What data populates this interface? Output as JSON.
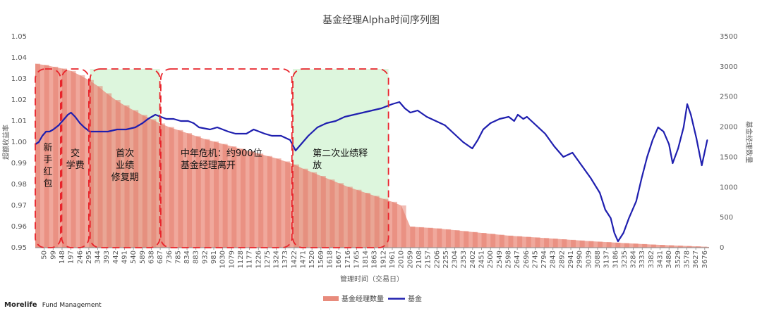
{
  "chart_data": {
    "type": "bar+line",
    "title": "基金经理Alpha时间序列图",
    "xlabel": "管理时间（交易日）",
    "ylabel_left": "超额收益率",
    "ylabel_right": "基金经理数量",
    "ylim_left": [
      0.95,
      1.05
    ],
    "ylim_right": [
      0,
      3500
    ],
    "yticks_left": [
      "0.95",
      "0.96",
      "0.97",
      "0.98",
      "0.99",
      "1.00",
      "1.01",
      "1.02",
      "1.03",
      "1.04",
      "1.05"
    ],
    "yticks_right": [
      "0",
      "500",
      "1000",
      "1500",
      "2000",
      "2500",
      "3000",
      "3500"
    ],
    "x_range": [
      1,
      3700
    ],
    "xticks": [
      "50",
      "99",
      "148",
      "197",
      "246",
      "295",
      "344",
      "393",
      "442",
      "491",
      "540",
      "589",
      "638",
      "687",
      "736",
      "785",
      "834",
      "883",
      "932",
      "981",
      "1030",
      "1079",
      "1128",
      "1177",
      "1226",
      "1275",
      "1324",
      "1373",
      "1422",
      "1471",
      "1520",
      "1569",
      "1618",
      "1667",
      "1716",
      "1765",
      "1814",
      "1863",
      "1912",
      "1961",
      "2010",
      "2059",
      "2108",
      "2157",
      "2206",
      "2255",
      "2304",
      "2353",
      "2402",
      "2451",
      "2500",
      "2549",
      "2598",
      "2647",
      "2696",
      "2745",
      "2794",
      "2843",
      "2892",
      "2941",
      "2990",
      "3039",
      "3088",
      "3137",
      "3186",
      "3235",
      "3284",
      "3333",
      "3382",
      "3431",
      "3480",
      "3529",
      "3578",
      "3627",
      "3676"
    ],
    "legend": [
      {
        "name": "基金经理数量",
        "color": "#e88b7c"
      },
      {
        "name": "基金",
        "color": "#1f1faf"
      }
    ],
    "legend_position": "bottom",
    "bar_series": {
      "name": "基金经理数量",
      "x": [
        1,
        50,
        99,
        148,
        197,
        246,
        295,
        344,
        393,
        442,
        491,
        540,
        589,
        638,
        687,
        736,
        785,
        834,
        883,
        932,
        981,
        1030,
        1079,
        1128,
        1177,
        1226,
        1275,
        1324,
        1373,
        1422,
        1471,
        1520,
        1569,
        1618,
        1667,
        1716,
        1765,
        1814,
        1863,
        1912,
        1961,
        2010,
        2059,
        2108,
        2157,
        2206,
        2255,
        2304,
        2353,
        2402,
        2451,
        2500,
        2549,
        2598,
        2647,
        2696,
        2745,
        2794,
        2843,
        2892,
        2941,
        2990,
        3039,
        3088,
        3137,
        3186,
        3235,
        3284,
        3333,
        3382,
        3431,
        3480,
        3529,
        3578,
        3627,
        3676,
        3700
      ],
      "y": [
        3050,
        3030,
        3000,
        2970,
        2930,
        2860,
        2780,
        2680,
        2560,
        2450,
        2360,
        2280,
        2200,
        2130,
        2060,
        2000,
        1950,
        1900,
        1850,
        1800,
        1760,
        1720,
        1680,
        1640,
        1600,
        1560,
        1520,
        1480,
        1430,
        1380,
        1310,
        1250,
        1190,
        1130,
        1070,
        1010,
        960,
        910,
        860,
        810,
        760,
        700,
        350,
        340,
        330,
        320,
        305,
        290,
        275,
        260,
        245,
        230,
        215,
        200,
        190,
        180,
        170,
        160,
        150,
        140,
        130,
        120,
        110,
        100,
        92,
        84,
        76,
        68,
        60,
        52,
        46,
        40,
        34,
        28,
        22,
        16,
        12
      ]
    },
    "line_series": {
      "name": "基金",
      "x": [
        1,
        20,
        40,
        60,
        80,
        100,
        130,
        160,
        180,
        197,
        220,
        246,
        270,
        300,
        330,
        360,
        400,
        450,
        500,
        550,
        590,
        620,
        640,
        660,
        690,
        720,
        760,
        800,
        840,
        870,
        900,
        960,
        1000,
        1060,
        1100,
        1160,
        1200,
        1260,
        1300,
        1350,
        1400,
        1430,
        1460,
        1500,
        1550,
        1600,
        1650,
        1700,
        1750,
        1800,
        1850,
        1900,
        1930,
        1960,
        2000,
        2030,
        2060,
        2100,
        2150,
        2200,
        2250,
        2300,
        2350,
        2400,
        2430,
        2460,
        2500,
        2550,
        2600,
        2630,
        2650,
        2680,
        2700,
        2750,
        2800,
        2850,
        2900,
        2950,
        3000,
        3050,
        3100,
        3130,
        3160,
        3180,
        3200,
        3230,
        3260,
        3300,
        3330,
        3360,
        3390,
        3420,
        3450,
        3480,
        3500,
        3530,
        3560,
        3580,
        3600,
        3630,
        3660,
        3690
      ],
      "y": [
        0.999,
        1.0,
        1.003,
        1.005,
        1.005,
        1.006,
        1.008,
        1.011,
        1.013,
        1.014,
        1.012,
        1.009,
        1.007,
        1.005,
        1.005,
        1.005,
        1.005,
        1.006,
        1.006,
        1.007,
        1.009,
        1.011,
        1.012,
        1.013,
        1.012,
        1.011,
        1.011,
        1.01,
        1.01,
        1.009,
        1.007,
        1.006,
        1.007,
        1.005,
        1.004,
        1.004,
        1.006,
        1.004,
        1.003,
        1.003,
        1.001,
        0.996,
        0.999,
        1.003,
        1.007,
        1.009,
        1.01,
        1.012,
        1.013,
        1.014,
        1.015,
        1.016,
        1.017,
        1.018,
        1.019,
        1.016,
        1.014,
        1.015,
        1.012,
        1.01,
        1.008,
        1.004,
        1.0,
        0.997,
        1.001,
        1.006,
        1.009,
        1.011,
        1.012,
        1.01,
        1.013,
        1.011,
        1.012,
        1.008,
        1.004,
        0.998,
        0.993,
        0.995,
        0.989,
        0.983,
        0.976,
        0.968,
        0.964,
        0.957,
        0.953,
        0.957,
        0.964,
        0.972,
        0.983,
        0.993,
        1.001,
        1.007,
        1.005,
        0.999,
        0.99,
        0.997,
        1.007,
        1.018,
        1.013,
        1.002,
        0.989,
        1.001
      ]
    },
    "annotations": [
      {
        "text": [
          "新",
          "手",
          "红",
          "包"
        ],
        "x_from": 1,
        "x_to": 140,
        "fill": "none"
      },
      {
        "text": [
          "交",
          "学费"
        ],
        "x_from": 146,
        "x_to": 295,
        "fill": "none"
      },
      {
        "text": [
          "首次",
          "业绩",
          "修复期"
        ],
        "x_from": 302,
        "x_to": 685,
        "fill": "#ddf6dd"
      },
      {
        "text": [
          "中年危机：约900位",
          "基金经理离开"
        ],
        "x_from": 690,
        "x_to": 1410,
        "fill": "none"
      },
      {
        "text": [
          "第二次业绩释",
          "放"
        ],
        "x_from": 1415,
        "x_to": 1940,
        "fill": "#ddf6dd"
      }
    ]
  },
  "footer": {
    "brand": "Morelife",
    "text": "Fund Management"
  }
}
